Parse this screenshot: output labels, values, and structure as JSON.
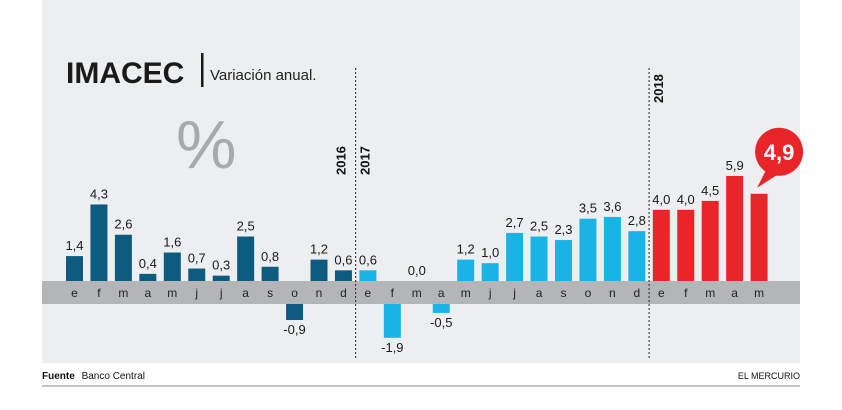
{
  "title": "IMACEC",
  "subtitle": "Variación anual.",
  "unit_symbol": "%",
  "source_label": "Fuente",
  "source_value": "Banco Central",
  "publisher": "EL MERCURIO",
  "chart_data": {
    "type": "bar",
    "title": "IMACEC",
    "subtitle": "Variación anual.",
    "ylabel": "%",
    "years": [
      {
        "label": "2016",
        "start_index": 0
      },
      {
        "label": "2017",
        "start_index": 12
      },
      {
        "label": "2018",
        "start_index": 24
      }
    ],
    "categories": [
      "e",
      "f",
      "m",
      "a",
      "m",
      "j",
      "j",
      "a",
      "s",
      "o",
      "n",
      "d",
      "e",
      "f",
      "m",
      "a",
      "m",
      "j",
      "j",
      "a",
      "s",
      "o",
      "n",
      "d",
      "e",
      "f",
      "m",
      "a",
      "m"
    ],
    "values": [
      1.4,
      4.3,
      2.6,
      0.4,
      1.6,
      0.7,
      0.3,
      2.5,
      0.8,
      -0.9,
      1.2,
      0.6,
      0.6,
      -1.9,
      0.0,
      -0.5,
      1.2,
      1.0,
      2.7,
      2.5,
      2.3,
      3.5,
      3.6,
      2.8,
      4.0,
      4.0,
      4.5,
      5.9,
      4.9
    ],
    "value_labels": [
      "1,4",
      "4,3",
      "2,6",
      "0,4",
      "1,6",
      "0,7",
      "0,3",
      "2,5",
      "0,8",
      "-0,9",
      "1,2",
      "0,6",
      "0,6",
      "-1,9",
      "0,0",
      "-0,5",
      "1,2",
      "1,0",
      "2,7",
      "2,5",
      "2,3",
      "3,5",
      "3,6",
      "2,8",
      "4,0",
      "4,0",
      "4,5",
      "5,9",
      "4,9"
    ],
    "highlight": {
      "index": 28,
      "label": "4,9"
    },
    "colors": {
      "y2016": "#0d5c80",
      "y2017": "#1ab3e6",
      "y2018": "#e8262a",
      "axis_band": "#b3b5b7",
      "background": "#eceeef"
    }
  }
}
